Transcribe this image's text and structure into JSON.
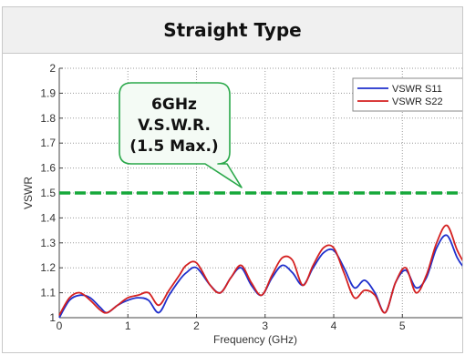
{
  "title": "Straight Type",
  "chart_data": {
    "type": "line",
    "title": "Straight Type",
    "xlabel": "Frequency (GHz)",
    "ylabel": "VSWR",
    "xlim": [
      0,
      5.9
    ],
    "ylim": [
      1.0,
      2.0
    ],
    "x_ticks": [
      "0",
      "1",
      "2",
      "3",
      "4",
      "5"
    ],
    "y_ticks": [
      "1",
      "1.1",
      "1.2",
      "1.3",
      "1.4",
      "1.5",
      "1.6",
      "1.7",
      "1.8",
      "1.9",
      "2"
    ],
    "grid": true,
    "legend_position": "top-right",
    "series": [
      {
        "name": "VSWR S11",
        "color": "#1f2fcc",
        "x": [
          0,
          0.15,
          0.3,
          0.45,
          0.6,
          0.7,
          0.85,
          1.0,
          1.15,
          1.3,
          1.45,
          1.6,
          1.75,
          1.85,
          2.0,
          2.2,
          2.35,
          2.5,
          2.65,
          2.8,
          2.95,
          3.1,
          3.25,
          3.4,
          3.55,
          3.7,
          3.85,
          4.0,
          4.15,
          4.3,
          4.45,
          4.6,
          4.75,
          4.9,
          5.05,
          5.2,
          5.35,
          5.5,
          5.65,
          5.8,
          5.9
        ],
        "y": [
          1.0,
          1.07,
          1.09,
          1.08,
          1.04,
          1.02,
          1.05,
          1.07,
          1.08,
          1.07,
          1.02,
          1.09,
          1.15,
          1.18,
          1.2,
          1.13,
          1.1,
          1.16,
          1.2,
          1.13,
          1.09,
          1.16,
          1.21,
          1.18,
          1.13,
          1.2,
          1.26,
          1.27,
          1.2,
          1.12,
          1.15,
          1.1,
          1.02,
          1.14,
          1.19,
          1.12,
          1.16,
          1.28,
          1.33,
          1.24,
          1.2
        ]
      },
      {
        "name": "VSWR S22",
        "color": "#d42020",
        "x": [
          0,
          0.15,
          0.3,
          0.45,
          0.6,
          0.7,
          0.85,
          1.0,
          1.15,
          1.3,
          1.45,
          1.6,
          1.75,
          1.85,
          2.0,
          2.2,
          2.35,
          2.5,
          2.65,
          2.8,
          2.95,
          3.1,
          3.25,
          3.4,
          3.55,
          3.7,
          3.85,
          4.0,
          4.15,
          4.3,
          4.45,
          4.6,
          4.75,
          4.9,
          5.05,
          5.2,
          5.35,
          5.5,
          5.65,
          5.8,
          5.9
        ],
        "y": [
          1.01,
          1.08,
          1.1,
          1.07,
          1.03,
          1.02,
          1.05,
          1.08,
          1.09,
          1.1,
          1.05,
          1.11,
          1.17,
          1.21,
          1.22,
          1.13,
          1.1,
          1.16,
          1.21,
          1.14,
          1.09,
          1.17,
          1.24,
          1.23,
          1.13,
          1.21,
          1.28,
          1.28,
          1.18,
          1.08,
          1.11,
          1.09,
          1.02,
          1.14,
          1.2,
          1.1,
          1.17,
          1.3,
          1.37,
          1.27,
          1.22
        ]
      }
    ],
    "reference_line": {
      "y": 1.5,
      "color": "#16a83a"
    },
    "callout": {
      "lines": [
        "6GHz",
        "V.S.W.R.",
        "(1.5 Max.)"
      ],
      "border_color": "#2aa84a",
      "fill": "#f4fbf5"
    }
  }
}
